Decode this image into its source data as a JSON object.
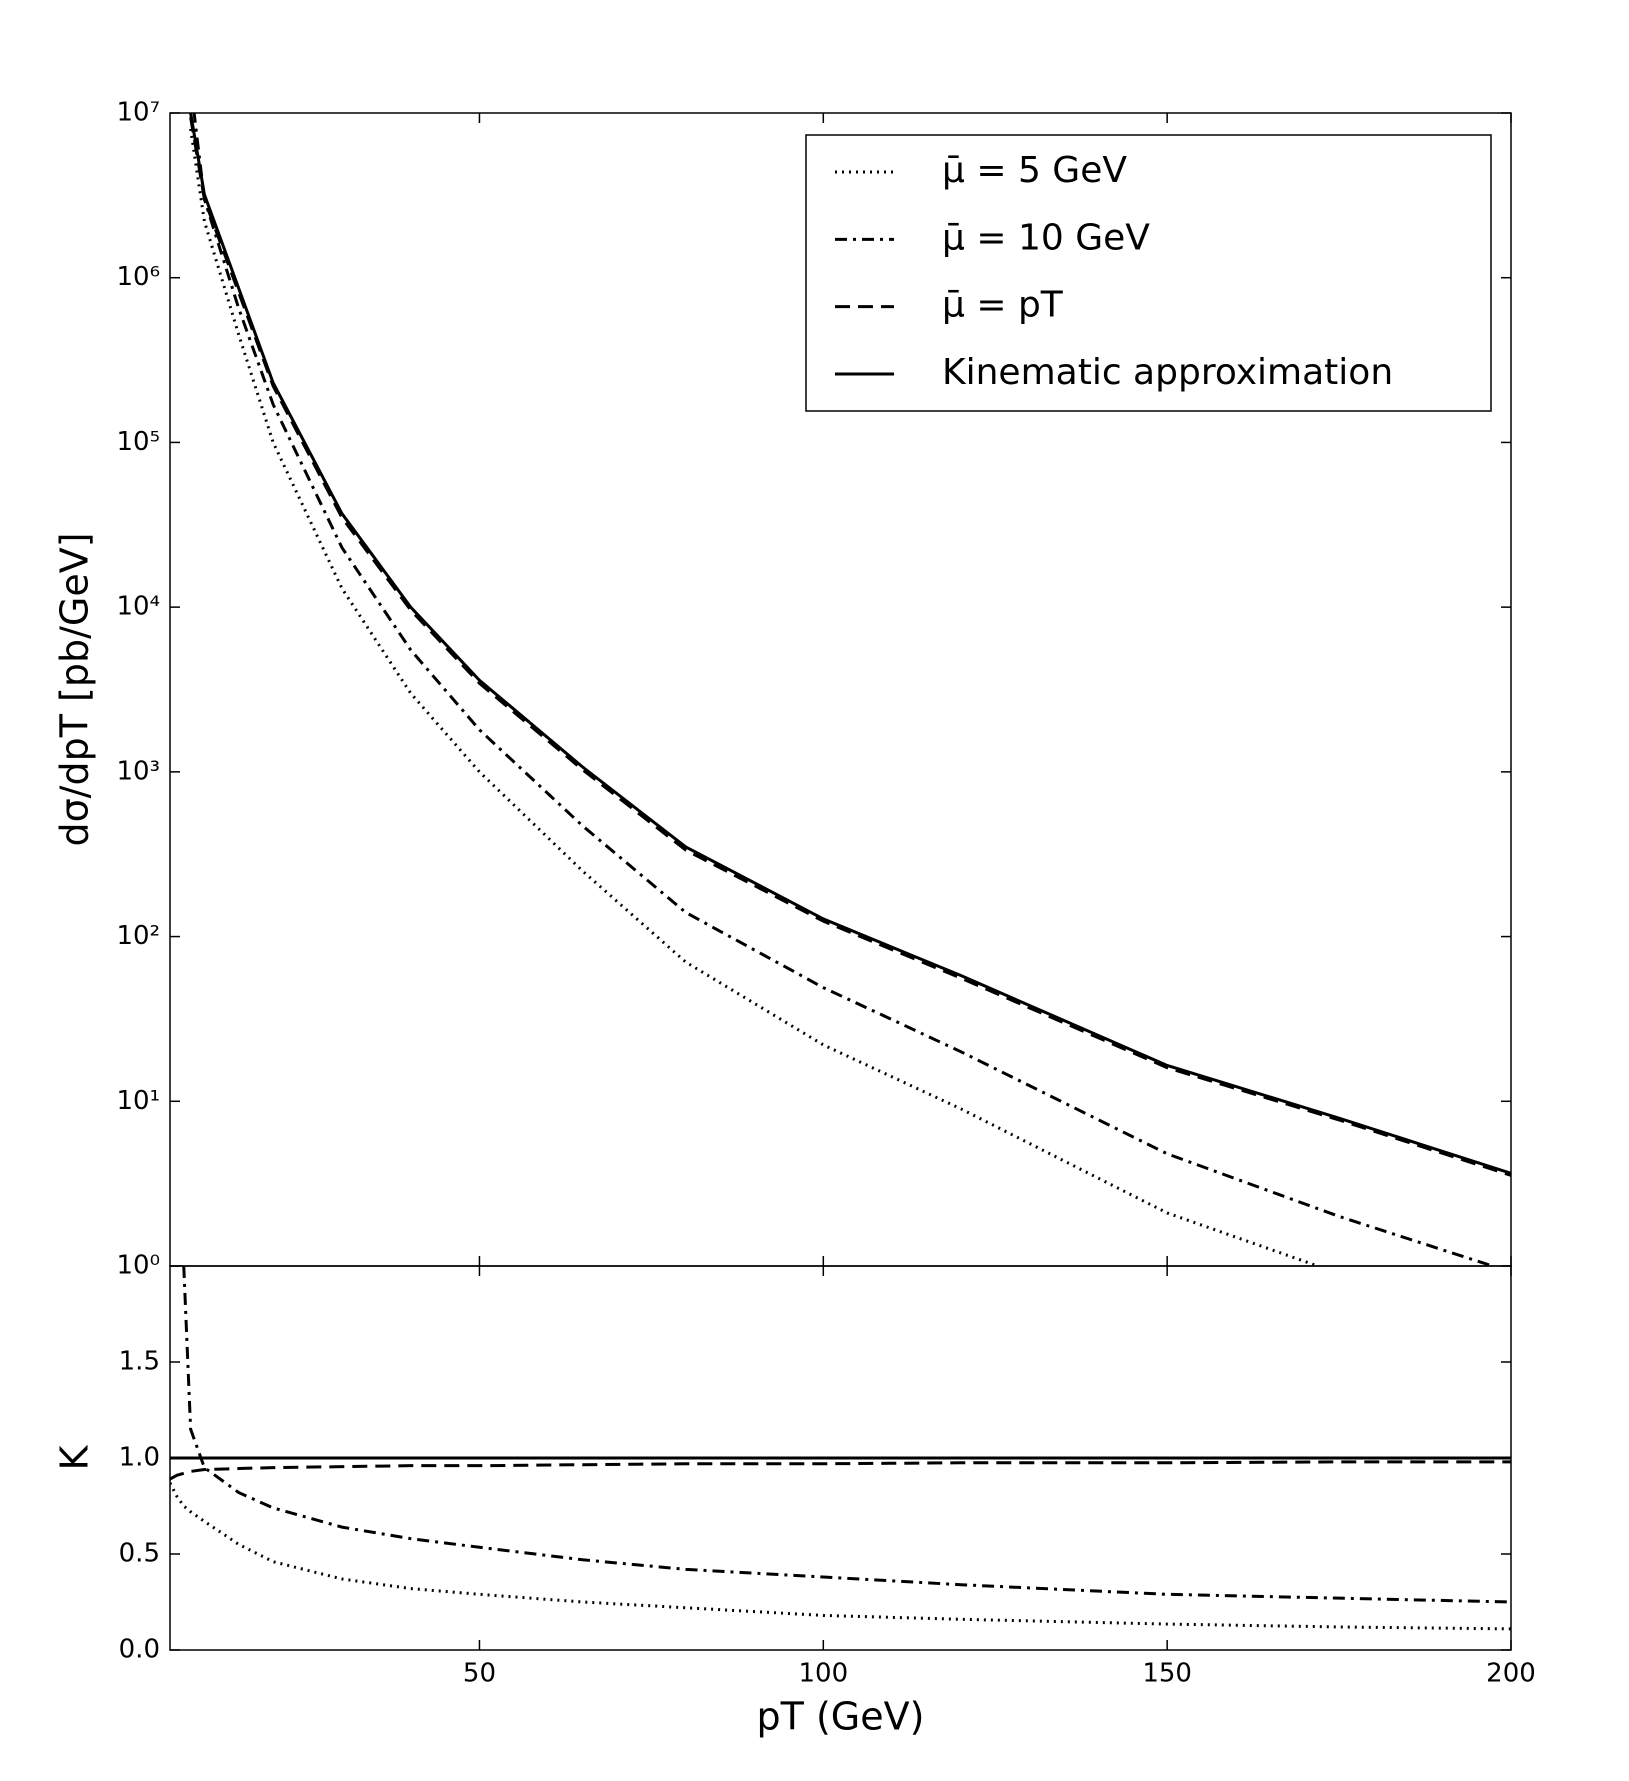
{
  "chart_data": [
    {
      "type": "line",
      "ylabel": "dσ/dpT [pb/GeV]",
      "log_y": true,
      "xlim": [
        5,
        200
      ],
      "ylim": [
        1,
        10000000
      ],
      "yticks": [
        {
          "value": 1,
          "label": "10⁰"
        },
        {
          "value": 10,
          "label": "10¹"
        },
        {
          "value": 100,
          "label": "10²"
        },
        {
          "value": 1000,
          "label": "10³"
        },
        {
          "value": 10000,
          "label": "10⁴"
        },
        {
          "value": 100000,
          "label": "10⁵"
        },
        {
          "value": 1000000,
          "label": "10⁶"
        },
        {
          "value": 10000000,
          "label": "10⁷"
        }
      ],
      "legend": "upper right",
      "x": [
        8,
        10,
        15,
        20,
        30,
        40,
        50,
        65,
        80,
        100,
        120,
        150,
        175,
        200
      ],
      "series": [
        {
          "name": "μ̄ = 5 GeV",
          "color": "#000000",
          "style": "dotted",
          "values": [
            8000000,
            2200000,
            450000,
            100000,
            13000,
            3000,
            1000,
            250,
            70,
            22,
            9,
            2.1,
            0.9,
            0.4
          ]
        },
        {
          "name": "μ̄ = 10 GeV",
          "color": "#000000",
          "style": "dashdot",
          "values": [
            15000000,
            3000000,
            650000,
            170000,
            23000,
            5500,
            1800,
            470,
            140,
            49,
            20,
            4.8,
            2.0,
            0.92
          ]
        },
        {
          "name": "μ̄ = pT",
          "color": "#000000",
          "style": "dashed",
          "values": [
            9400000,
            3000000,
            810000,
            220000,
            35000,
            9600,
            3450,
            1030,
            335,
            124,
            56,
            16,
            7.7,
            3.55
          ]
        },
        {
          "name": "Kinematic approximation",
          "color": "#000000",
          "style": "solid",
          "values": [
            10000000,
            3200000,
            860000,
            230000,
            37000,
            10000,
            3600,
            1070,
            350,
            128,
            58,
            16.5,
            7.9,
            3.65
          ]
        }
      ]
    },
    {
      "type": "line",
      "ylabel": "K",
      "xlabel": "pT (GeV)",
      "xlim": [
        5,
        200
      ],
      "ylim": [
        0,
        2
      ],
      "xticks": [
        50,
        100,
        150,
        200
      ],
      "yticks": [
        {
          "value": 0,
          "label": "0.0"
        },
        {
          "value": 0.5,
          "label": "0.5"
        },
        {
          "value": 1,
          "label": "1.0"
        },
        {
          "value": 1.5,
          "label": "1.5"
        }
      ],
      "x": [
        5,
        6,
        7,
        8,
        10,
        15,
        20,
        30,
        40,
        50,
        65,
        80,
        100,
        120,
        150,
        175,
        200
      ],
      "series": [
        {
          "color": "#000000",
          "style": "dotted",
          "values": [
            0.87,
            0.8,
            0.75,
            0.72,
            0.67,
            0.55,
            0.46,
            0.37,
            0.32,
            0.29,
            0.25,
            0.22,
            0.18,
            0.16,
            0.135,
            0.12,
            0.11
          ]
        },
        {
          "color": "#000000",
          "style": "dashdot",
          "values": [
            null,
            null,
            2.0,
            1.15,
            0.95,
            0.82,
            0.74,
            0.64,
            0.58,
            0.535,
            0.47,
            0.42,
            0.38,
            0.34,
            0.29,
            0.27,
            0.25
          ]
        },
        {
          "color": "#000000",
          "style": "dashed",
          "values": [
            0.89,
            0.91,
            0.92,
            0.93,
            0.94,
            0.945,
            0.95,
            0.955,
            0.96,
            0.96,
            0.965,
            0.97,
            0.97,
            0.975,
            0.975,
            0.98,
            0.98
          ]
        },
        {
          "color": "#000000",
          "style": "solid",
          "values": [
            1,
            1,
            1,
            1,
            1,
            1,
            1,
            1,
            1,
            1,
            1,
            1,
            1,
            1,
            1,
            1,
            1
          ]
        }
      ]
    }
  ]
}
